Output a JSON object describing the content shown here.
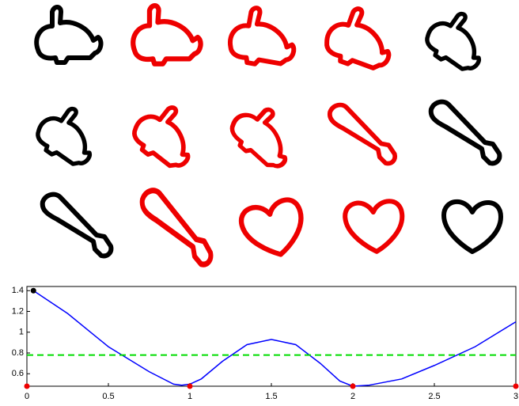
{
  "chart_data": {
    "type": "line",
    "xlim": [
      0,
      3
    ],
    "xticks": [
      0,
      0.5,
      1,
      1.5,
      2,
      2.5,
      3
    ],
    "ylim": [
      0.48,
      1.44
    ],
    "yticks": [
      0.6,
      0.8,
      1,
      1.2,
      1.4
    ],
    "series": [
      {
        "color": "#0000ff",
        "style": "solid",
        "x": [
          0.04,
          0.25,
          0.5,
          0.75,
          0.9,
          0.95,
          1.0,
          1.07,
          1.2,
          1.35,
          1.5,
          1.65,
          1.8,
          1.92,
          2.0,
          2.1,
          2.3,
          2.5,
          2.75,
          3.0
        ],
        "values": [
          1.4,
          1.18,
          0.86,
          0.62,
          0.5,
          0.49,
          0.5,
          0.55,
          0.72,
          0.88,
          0.93,
          0.88,
          0.7,
          0.53,
          0.48,
          0.49,
          0.55,
          0.68,
          0.86,
          1.1
        ]
      },
      {
        "color": "#00dd00",
        "style": "dashed",
        "x": [
          0,
          3
        ],
        "values": [
          0.78,
          0.78
        ]
      },
      {
        "color": "#ee0000",
        "style": "markers",
        "x": [
          0,
          1,
          2,
          3
        ],
        "values": [
          0.48,
          0.48,
          0.48,
          0.48
        ]
      },
      {
        "color": "#000000",
        "style": "markers",
        "x": [
          0.04
        ],
        "values": [
          1.4
        ]
      }
    ]
  }
}
